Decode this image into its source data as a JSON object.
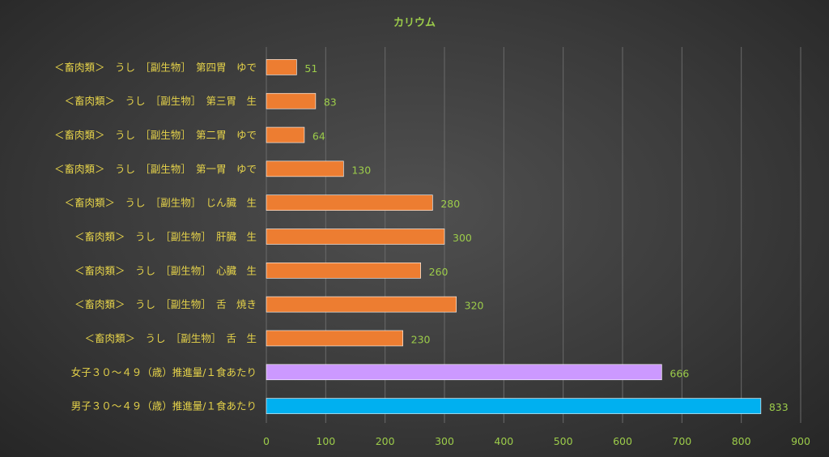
{
  "chart_data": {
    "type": "bar",
    "orientation": "horizontal",
    "title": "カリウム",
    "categories": [
      "＜畜肉類＞　うし　［副生物］　第四胃　ゆで",
      "＜畜肉類＞　うし　［副生物］　第三胃　生",
      "＜畜肉類＞　うし　［副生物］　第二胃　ゆで",
      "＜畜肉類＞　うし　［副生物］　第一胃　ゆで",
      "＜畜肉類＞　うし　［副生物］　じん臓　生",
      "＜畜肉類＞　うし　［副生物］　肝臓　生",
      "＜畜肉類＞　うし　［副生物］　心臓　生",
      "＜畜肉類＞　うし　［副生物］　舌　焼き",
      "＜畜肉類＞　うし　［副生物］　舌　生",
      "女子３０～４９（歳）推進量/１食あたり",
      "男子３０～４９（歳）推進量/１食あたり"
    ],
    "values": [
      51,
      83,
      64,
      130,
      280,
      300,
      260,
      320,
      230,
      666,
      833
    ],
    "bar_colors": [
      "#ed7d31",
      "#ed7d31",
      "#ed7d31",
      "#ed7d31",
      "#ed7d31",
      "#ed7d31",
      "#ed7d31",
      "#ed7d31",
      "#ed7d31",
      "#cc99ff",
      "#00b0f0"
    ],
    "xlim": [
      0,
      900
    ],
    "xticks": [
      0,
      100,
      200,
      300,
      400,
      500,
      600,
      700,
      800,
      900
    ],
    "grid": true,
    "legend": false
  }
}
